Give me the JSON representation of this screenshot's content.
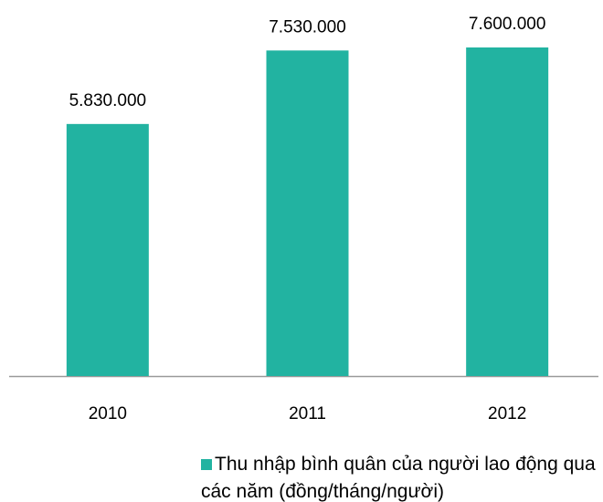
{
  "chart_data": {
    "type": "bar",
    "categories": [
      "2010",
      "2011",
      "2012"
    ],
    "series": [
      {
        "name": "Thu nhập bình quân của người lao động qua các năm (đồng/tháng/người)",
        "color": "#22b3a1",
        "values": [
          5830000,
          7530000,
          7600000
        ],
        "value_labels": [
          "5.830.000",
          "7.530.000",
          "7.600.000"
        ]
      }
    ]
  }
}
